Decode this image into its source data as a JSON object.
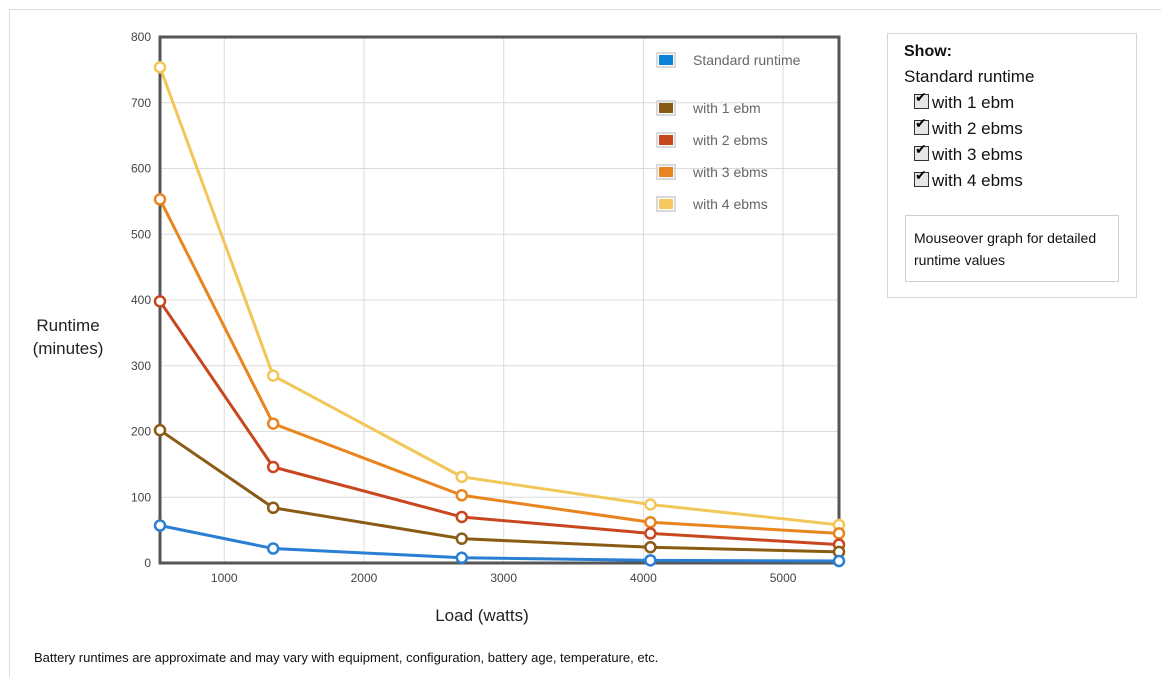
{
  "chart_data": {
    "type": "line",
    "xlabel": "Load (watts)",
    "ylabel": "Runtime (minutes)",
    "xlim": [
      540,
      5400
    ],
    "ylim": [
      0,
      800
    ],
    "x_ticks": [
      1000,
      2000,
      3000,
      4000,
      5000
    ],
    "y_ticks": [
      0,
      100,
      200,
      300,
      400,
      500,
      600,
      700,
      800
    ],
    "x": [
      540,
      1350,
      2700,
      4050,
      5400
    ],
    "grid": true,
    "legend_position": "top-right",
    "series": [
      {
        "name": "Standard runtime",
        "color": "#2a7fd4",
        "values": [
          57,
          22,
          8,
          4,
          3
        ]
      },
      {
        "name": "with 1 ebm",
        "color": "#8b5a14",
        "values": [
          202,
          84,
          37,
          24,
          17
        ]
      },
      {
        "name": "with 2 ebms",
        "color": "#c9471e",
        "values": [
          398,
          146,
          70,
          45,
          28
        ]
      },
      {
        "name": "with 3 ebms",
        "color": "#e8851e",
        "values": [
          553,
          212,
          103,
          62,
          45
        ]
      },
      {
        "name": "with 4 ebms",
        "color": "#f2c75a",
        "values": [
          754,
          285,
          131,
          89,
          58
        ]
      }
    ]
  },
  "legend": [
    {
      "label": "Standard runtime",
      "color": "#0a84d8"
    },
    {
      "label": "with 1 ebm",
      "color": "#8b5a14"
    },
    {
      "label": "with 2 ebms",
      "color": "#c9471e"
    },
    {
      "label": "with 3 ebms",
      "color": "#e8851e"
    },
    {
      "label": "with 4 ebms",
      "color": "#f7c760"
    }
  ],
  "labels": {
    "ylabel_line1": "Runtime",
    "ylabel_line2": "(minutes)",
    "xlabel": "Load (watts)",
    "footnote": "Battery runtimes are approximate and may vary with equipment, configuration, battery age, temperature, etc."
  },
  "panel": {
    "title": "Show:",
    "standard": "Standard runtime",
    "options": [
      "with 1 ebm",
      "with 2 ebms",
      "with 3 ebms",
      "with 4 ebms"
    ],
    "tip": "Mouseover graph for detailed runtime values"
  }
}
